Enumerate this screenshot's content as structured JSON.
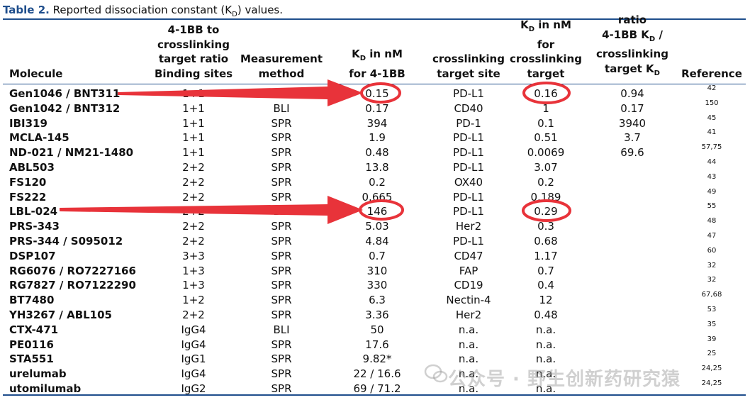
{
  "caption": {
    "label": "Table 2.",
    "text": " Reported dissociation constant (K",
    "sub": "D",
    "after": ") values."
  },
  "headers": {
    "molecule": [
      "Molecule"
    ],
    "ratio": [
      "4-1BB to",
      "crosslinking",
      "target ratio",
      "Binding sites"
    ],
    "method": [
      "Measurement",
      "method"
    ],
    "kd41bb": [
      "K_D in nM",
      "for 4-1BB"
    ],
    "site": [
      "crosslinking",
      "target site"
    ],
    "kdtarget": [
      "K_D in nM",
      "for",
      "crosslinking",
      "target"
    ],
    "ratio2": [
      "ratio",
      "4-1BB K_D /",
      "crosslinking",
      "target K_D"
    ],
    "reference": [
      "Reference"
    ]
  },
  "rows": [
    {
      "molecule": "Gen1046 / BNT311",
      "ratio": "1+1",
      "method": "BLI",
      "kd": "0.15",
      "site": "PD-L1",
      "kdt": "0.16",
      "r2": "0.94",
      "ref": "42"
    },
    {
      "molecule": "Gen1042 / BNT312",
      "ratio": "1+1",
      "method": "BLI",
      "kd": "0.17",
      "site": "CD40",
      "kdt": "1",
      "r2": "0.17",
      "ref": "150"
    },
    {
      "molecule": "IBI319",
      "ratio": "1+1",
      "method": "SPR",
      "kd": "394",
      "site": "PD-1",
      "kdt": "0.1",
      "r2": "3940",
      "ref": "45"
    },
    {
      "molecule": "MCLA-145",
      "ratio": "1+1",
      "method": "SPR",
      "kd": "1.9",
      "site": "PD-L1",
      "kdt": "0.51",
      "r2": "3.7",
      "ref": "41"
    },
    {
      "molecule": "ND-021 / NM21-1480",
      "ratio": "1+1",
      "method": "SPR",
      "kd": "0.48",
      "site": "PD-L1",
      "kdt": "0.0069",
      "r2": "69.6",
      "ref": "57,75"
    },
    {
      "molecule": "ABL503",
      "ratio": "2+2",
      "method": "SPR",
      "kd": "13.8",
      "site": "PD-L1",
      "kdt": "3.07",
      "r2": "",
      "ref": "44"
    },
    {
      "molecule": "FS120",
      "ratio": "2+2",
      "method": "SPR",
      "kd": "0.2",
      "site": "OX40",
      "kdt": "0.2",
      "r2": "",
      "ref": "43"
    },
    {
      "molecule": "FS222",
      "ratio": "2+2",
      "method": "SPR",
      "kd": "0.665",
      "site": "PD-L1",
      "kdt": "0.189",
      "r2": "",
      "ref": "49"
    },
    {
      "molecule": "LBL-024",
      "ratio": "2+2",
      "method": "BLI",
      "kd": "146",
      "site": "PD-L1",
      "kdt": "0.29",
      "r2": "",
      "ref": "55"
    },
    {
      "molecule": "PRS-343",
      "ratio": "2+2",
      "method": "SPR",
      "kd": "5.03",
      "site": "Her2",
      "kdt": "0.3",
      "r2": "",
      "ref": "48"
    },
    {
      "molecule": "PRS-344 / S095012",
      "ratio": "2+2",
      "method": "SPR",
      "kd": "4.84",
      "site": "PD-L1",
      "kdt": "0.68",
      "r2": "",
      "ref": "47"
    },
    {
      "molecule": "DSP107",
      "ratio": "3+3",
      "method": "SPR",
      "kd": "0.7",
      "site": "CD47",
      "kdt": "1.17",
      "r2": "",
      "ref": "60"
    },
    {
      "molecule": "RG6076 / RO7227166",
      "ratio": "1+3",
      "method": "SPR",
      "kd": "310",
      "site": "FAP",
      "kdt": "0.7",
      "r2": "",
      "ref": "32"
    },
    {
      "molecule": "RG7827 / RO7122290",
      "ratio": "1+3",
      "method": "SPR",
      "kd": "330",
      "site": "CD19",
      "kdt": "0.4",
      "r2": "",
      "ref": "32"
    },
    {
      "molecule": "BT7480",
      "ratio": "1+2",
      "method": "SPR",
      "kd": "6.3",
      "site": "Nectin-4",
      "kdt": "12",
      "r2": "",
      "ref": "67,68"
    },
    {
      "molecule": "YH3267 / ABL105",
      "ratio": "2+2",
      "method": "SPR",
      "kd": "3.36",
      "site": "Her2",
      "kdt": "0.48",
      "r2": "",
      "ref": "53"
    },
    {
      "molecule": "CTX-471",
      "ratio": "IgG4",
      "method": "BLI",
      "kd": "50",
      "site": "n.a.",
      "kdt": "n.a.",
      "r2": "",
      "ref": "35"
    },
    {
      "molecule": "PE0116",
      "ratio": "IgG4",
      "method": "SPR",
      "kd": "17.6",
      "site": "n.a.",
      "kdt": "n.a.",
      "r2": "",
      "ref": "39"
    },
    {
      "molecule": "STA551",
      "ratio": "IgG1",
      "method": "SPR",
      "kd": "9.82*",
      "site": "n.a.",
      "kdt": "n.a.",
      "r2": "",
      "ref": "25"
    },
    {
      "molecule": "urelumab",
      "ratio": "IgG4",
      "method": "SPR",
      "kd": "22 / 16.6",
      "site": "n.a.",
      "kdt": "n.a.",
      "r2": "",
      "ref": "24,25"
    },
    {
      "molecule": "utomilumab",
      "ratio": "IgG2",
      "method": "SPR",
      "kd": "69 / 71.2",
      "site": "n.a.",
      "kdt": "n.a.",
      "r2": "",
      "ref": "24,25"
    }
  ],
  "watermark": "公众号 · 野生创新药研究猿",
  "colors": {
    "accent": "#1f4e8c",
    "annotation": "#e8333a"
  }
}
